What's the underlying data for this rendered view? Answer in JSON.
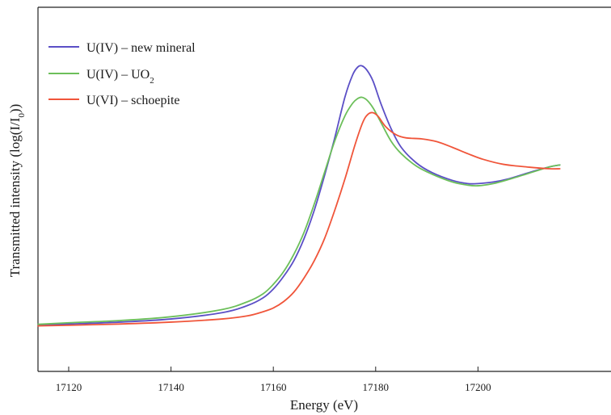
{
  "chart_data": {
    "type": "line",
    "title": "",
    "xlabel": "Energy (eV)",
    "ylabel": "Transmitted intensity (log(I/I",
    "ylabel_subscript": "0",
    "ylabel_suffix": "))",
    "xlim": [
      17114,
      17226
    ],
    "ylim": [
      0,
      1
    ],
    "x_ticks": [
      17120,
      17140,
      17160,
      17180,
      17200
    ],
    "tick_labels": [
      "17120",
      "17140",
      "17160",
      "17180",
      "17200"
    ],
    "grid": false,
    "legend_position": "top-left",
    "series": [
      {
        "name": "U(IV) – new mineral",
        "name_main": "U(IV) – new mineral",
        "name_sub": "",
        "color": "#5b4fc6",
        "points": [
          [
            17114,
            0.086
          ],
          [
            17120,
            0.089
          ],
          [
            17130,
            0.095
          ],
          [
            17140,
            0.105
          ],
          [
            17150,
            0.125
          ],
          [
            17155,
            0.148
          ],
          [
            17158,
            0.172
          ],
          [
            17160,
            0.2
          ],
          [
            17162,
            0.24
          ],
          [
            17164,
            0.29
          ],
          [
            17166,
            0.36
          ],
          [
            17168,
            0.45
          ],
          [
            17170,
            0.56
          ],
          [
            17172,
            0.68
          ],
          [
            17174,
            0.81
          ],
          [
            17175.5,
            0.88
          ],
          [
            17176.5,
            0.905
          ],
          [
            17177.3,
            0.909
          ],
          [
            17178.3,
            0.895
          ],
          [
            17179.5,
            0.86
          ],
          [
            17181,
            0.79
          ],
          [
            17183,
            0.71
          ],
          [
            17185,
            0.65
          ],
          [
            17188,
            0.6
          ],
          [
            17191,
            0.57
          ],
          [
            17195,
            0.545
          ],
          [
            17198,
            0.535
          ],
          [
            17200,
            0.535
          ],
          [
            17203,
            0.54
          ],
          [
            17206,
            0.55
          ],
          [
            17210,
            0.57
          ],
          [
            17214,
            0.588
          ],
          [
            17216,
            0.594
          ]
        ]
      },
      {
        "name": "U(IV) – UO2",
        "name_main": "U(IV) – UO",
        "name_sub": "2",
        "color": "#6cbf5a",
        "points": [
          [
            17114,
            0.088
          ],
          [
            17120,
            0.093
          ],
          [
            17130,
            0.1
          ],
          [
            17140,
            0.112
          ],
          [
            17150,
            0.135
          ],
          [
            17155,
            0.16
          ],
          [
            17158,
            0.185
          ],
          [
            17160,
            0.215
          ],
          [
            17162,
            0.255
          ],
          [
            17164,
            0.31
          ],
          [
            17166,
            0.38
          ],
          [
            17168,
            0.47
          ],
          [
            17170,
            0.57
          ],
          [
            17172,
            0.67
          ],
          [
            17174,
            0.75
          ],
          [
            17175.5,
            0.79
          ],
          [
            17176.5,
            0.805
          ],
          [
            17177.3,
            0.809
          ],
          [
            17178.3,
            0.8
          ],
          [
            17179.5,
            0.775
          ],
          [
            17181,
            0.73
          ],
          [
            17183,
            0.67
          ],
          [
            17185,
            0.63
          ],
          [
            17188,
            0.59
          ],
          [
            17191,
            0.565
          ],
          [
            17195,
            0.54
          ],
          [
            17198,
            0.53
          ],
          [
            17200,
            0.528
          ],
          [
            17203,
            0.535
          ],
          [
            17206,
            0.548
          ],
          [
            17210,
            0.568
          ],
          [
            17214,
            0.588
          ],
          [
            17216,
            0.594
          ]
        ]
      },
      {
        "name": "U(VI) – schoepite",
        "name_main": "U(VI) – schoepite",
        "name_sub": "",
        "color": "#f0553a",
        "points": [
          [
            17114,
            0.083
          ],
          [
            17120,
            0.085
          ],
          [
            17130,
            0.089
          ],
          [
            17140,
            0.095
          ],
          [
            17150,
            0.105
          ],
          [
            17155,
            0.115
          ],
          [
            17158,
            0.128
          ],
          [
            17160,
            0.14
          ],
          [
            17162,
            0.16
          ],
          [
            17164,
            0.19
          ],
          [
            17166,
            0.235
          ],
          [
            17168,
            0.29
          ],
          [
            17170,
            0.36
          ],
          [
            17172,
            0.45
          ],
          [
            17174,
            0.55
          ],
          [
            17176,
            0.66
          ],
          [
            17177.5,
            0.73
          ],
          [
            17178.5,
            0.755
          ],
          [
            17179.5,
            0.76
          ],
          [
            17180.5,
            0.748
          ],
          [
            17182,
            0.715
          ],
          [
            17184,
            0.69
          ],
          [
            17186,
            0.68
          ],
          [
            17189,
            0.677
          ],
          [
            17192,
            0.668
          ],
          [
            17195,
            0.65
          ],
          [
            17198,
            0.63
          ],
          [
            17201,
            0.612
          ],
          [
            17205,
            0.596
          ],
          [
            17210,
            0.587
          ],
          [
            17214,
            0.582
          ],
          [
            17216,
            0.582
          ]
        ]
      }
    ]
  }
}
